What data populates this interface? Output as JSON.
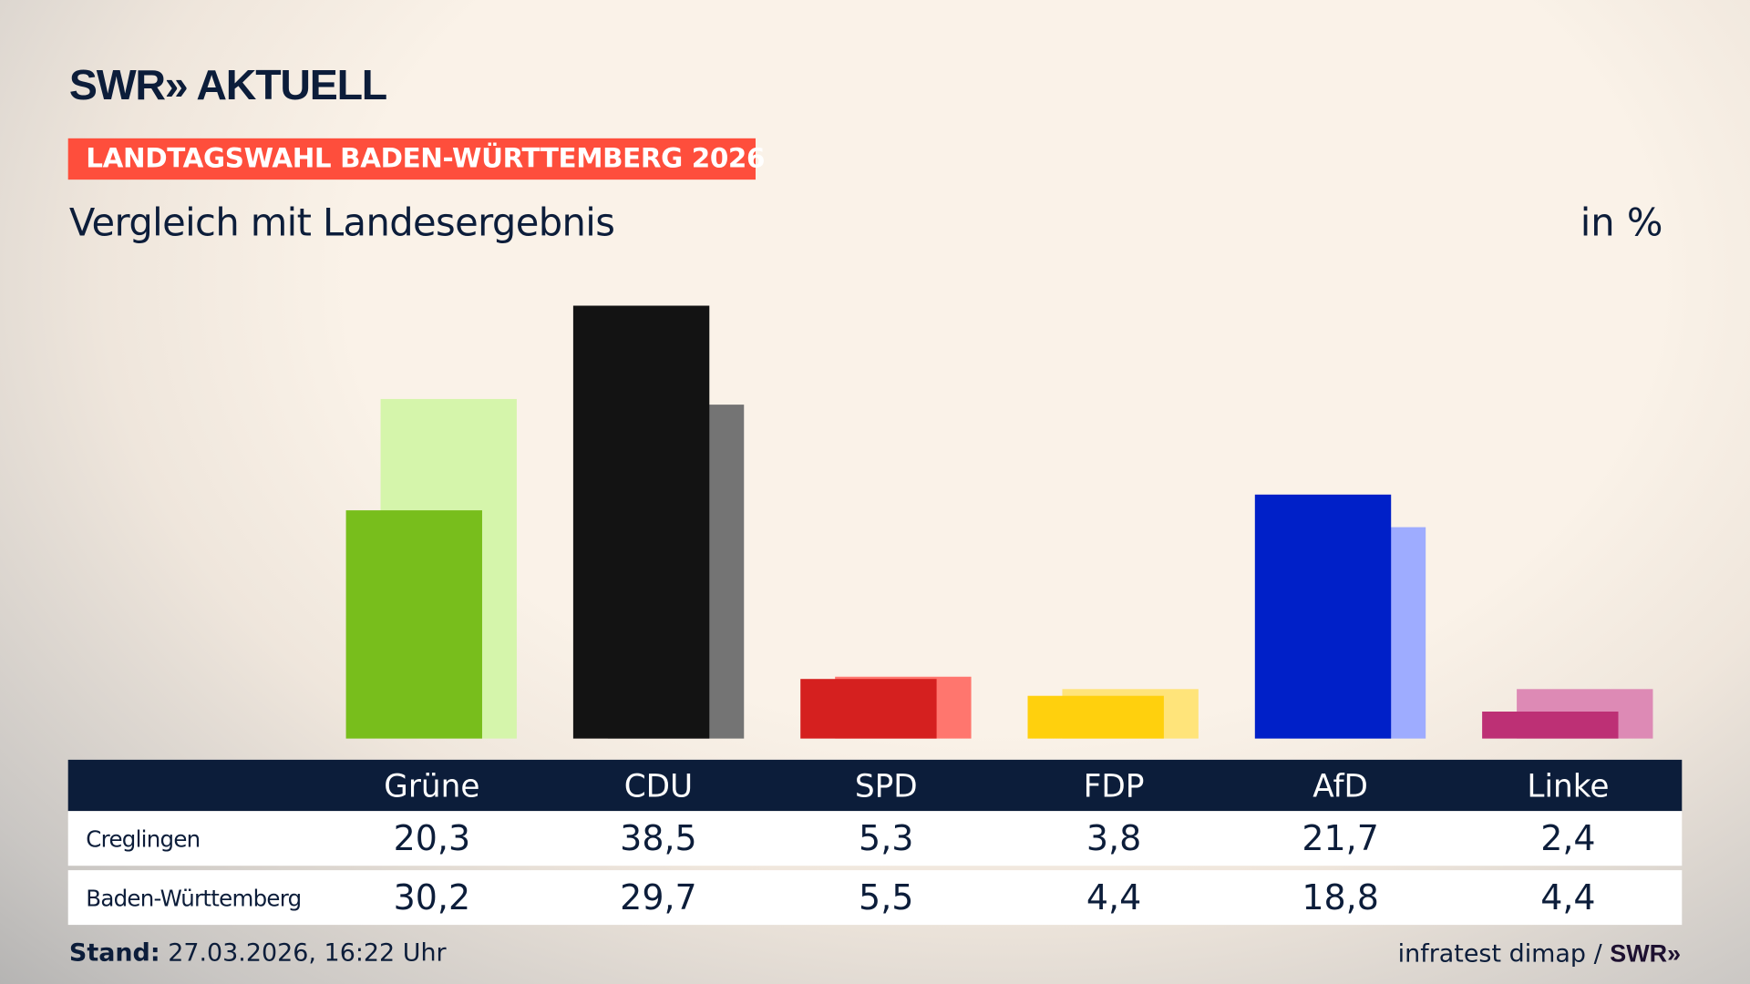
{
  "header": {
    "logo": "SWR» AKTUELL",
    "kicker": "LANDTAGSWAHL BADEN-WÜRTTEMBERG 2026",
    "title": "Vergleich mit Landesergebnis",
    "unit": "in %"
  },
  "chart_data": {
    "type": "bar",
    "categories": [
      "Grüne",
      "CDU",
      "SPD",
      "FDP",
      "AfD",
      "Linke"
    ],
    "series": [
      {
        "name": "Creglingen",
        "values": [
          20.3,
          38.5,
          5.3,
          3.8,
          21.7,
          2.4
        ],
        "colors": [
          "#78be1c",
          "#131313",
          "#d5201f",
          "#ffd00d",
          "#0020c8",
          "#bd3075"
        ]
      },
      {
        "name": "Baden-Württemberg",
        "values": [
          30.2,
          29.7,
          5.5,
          4.4,
          18.8,
          4.4
        ],
        "colors": [
          "#d5f5ab",
          "#747474",
          "#ff766e",
          "#ffe47a",
          "#9eacff",
          "#dd8ab5"
        ]
      }
    ],
    "ylim": [
      0,
      38.5
    ],
    "grid": false
  },
  "table": {
    "headers": [
      "Grüne",
      "CDU",
      "SPD",
      "FDP",
      "AfD",
      "Linke"
    ],
    "rows": [
      {
        "label": "Creglingen",
        "values": [
          "20,3",
          "38,5",
          "5,3",
          "3,8",
          "21,7",
          "2,4"
        ]
      },
      {
        "label": "Baden-Württemberg",
        "values": [
          "30,2",
          "29,7",
          "5,5",
          "4,4",
          "18,8",
          "4,4"
        ]
      }
    ]
  },
  "footer": {
    "stand_label": "Stand:",
    "stand_value": "27.03.2026, 16:22 Uhr",
    "source": "infratest dimap /",
    "source_logo": "SWR»"
  }
}
